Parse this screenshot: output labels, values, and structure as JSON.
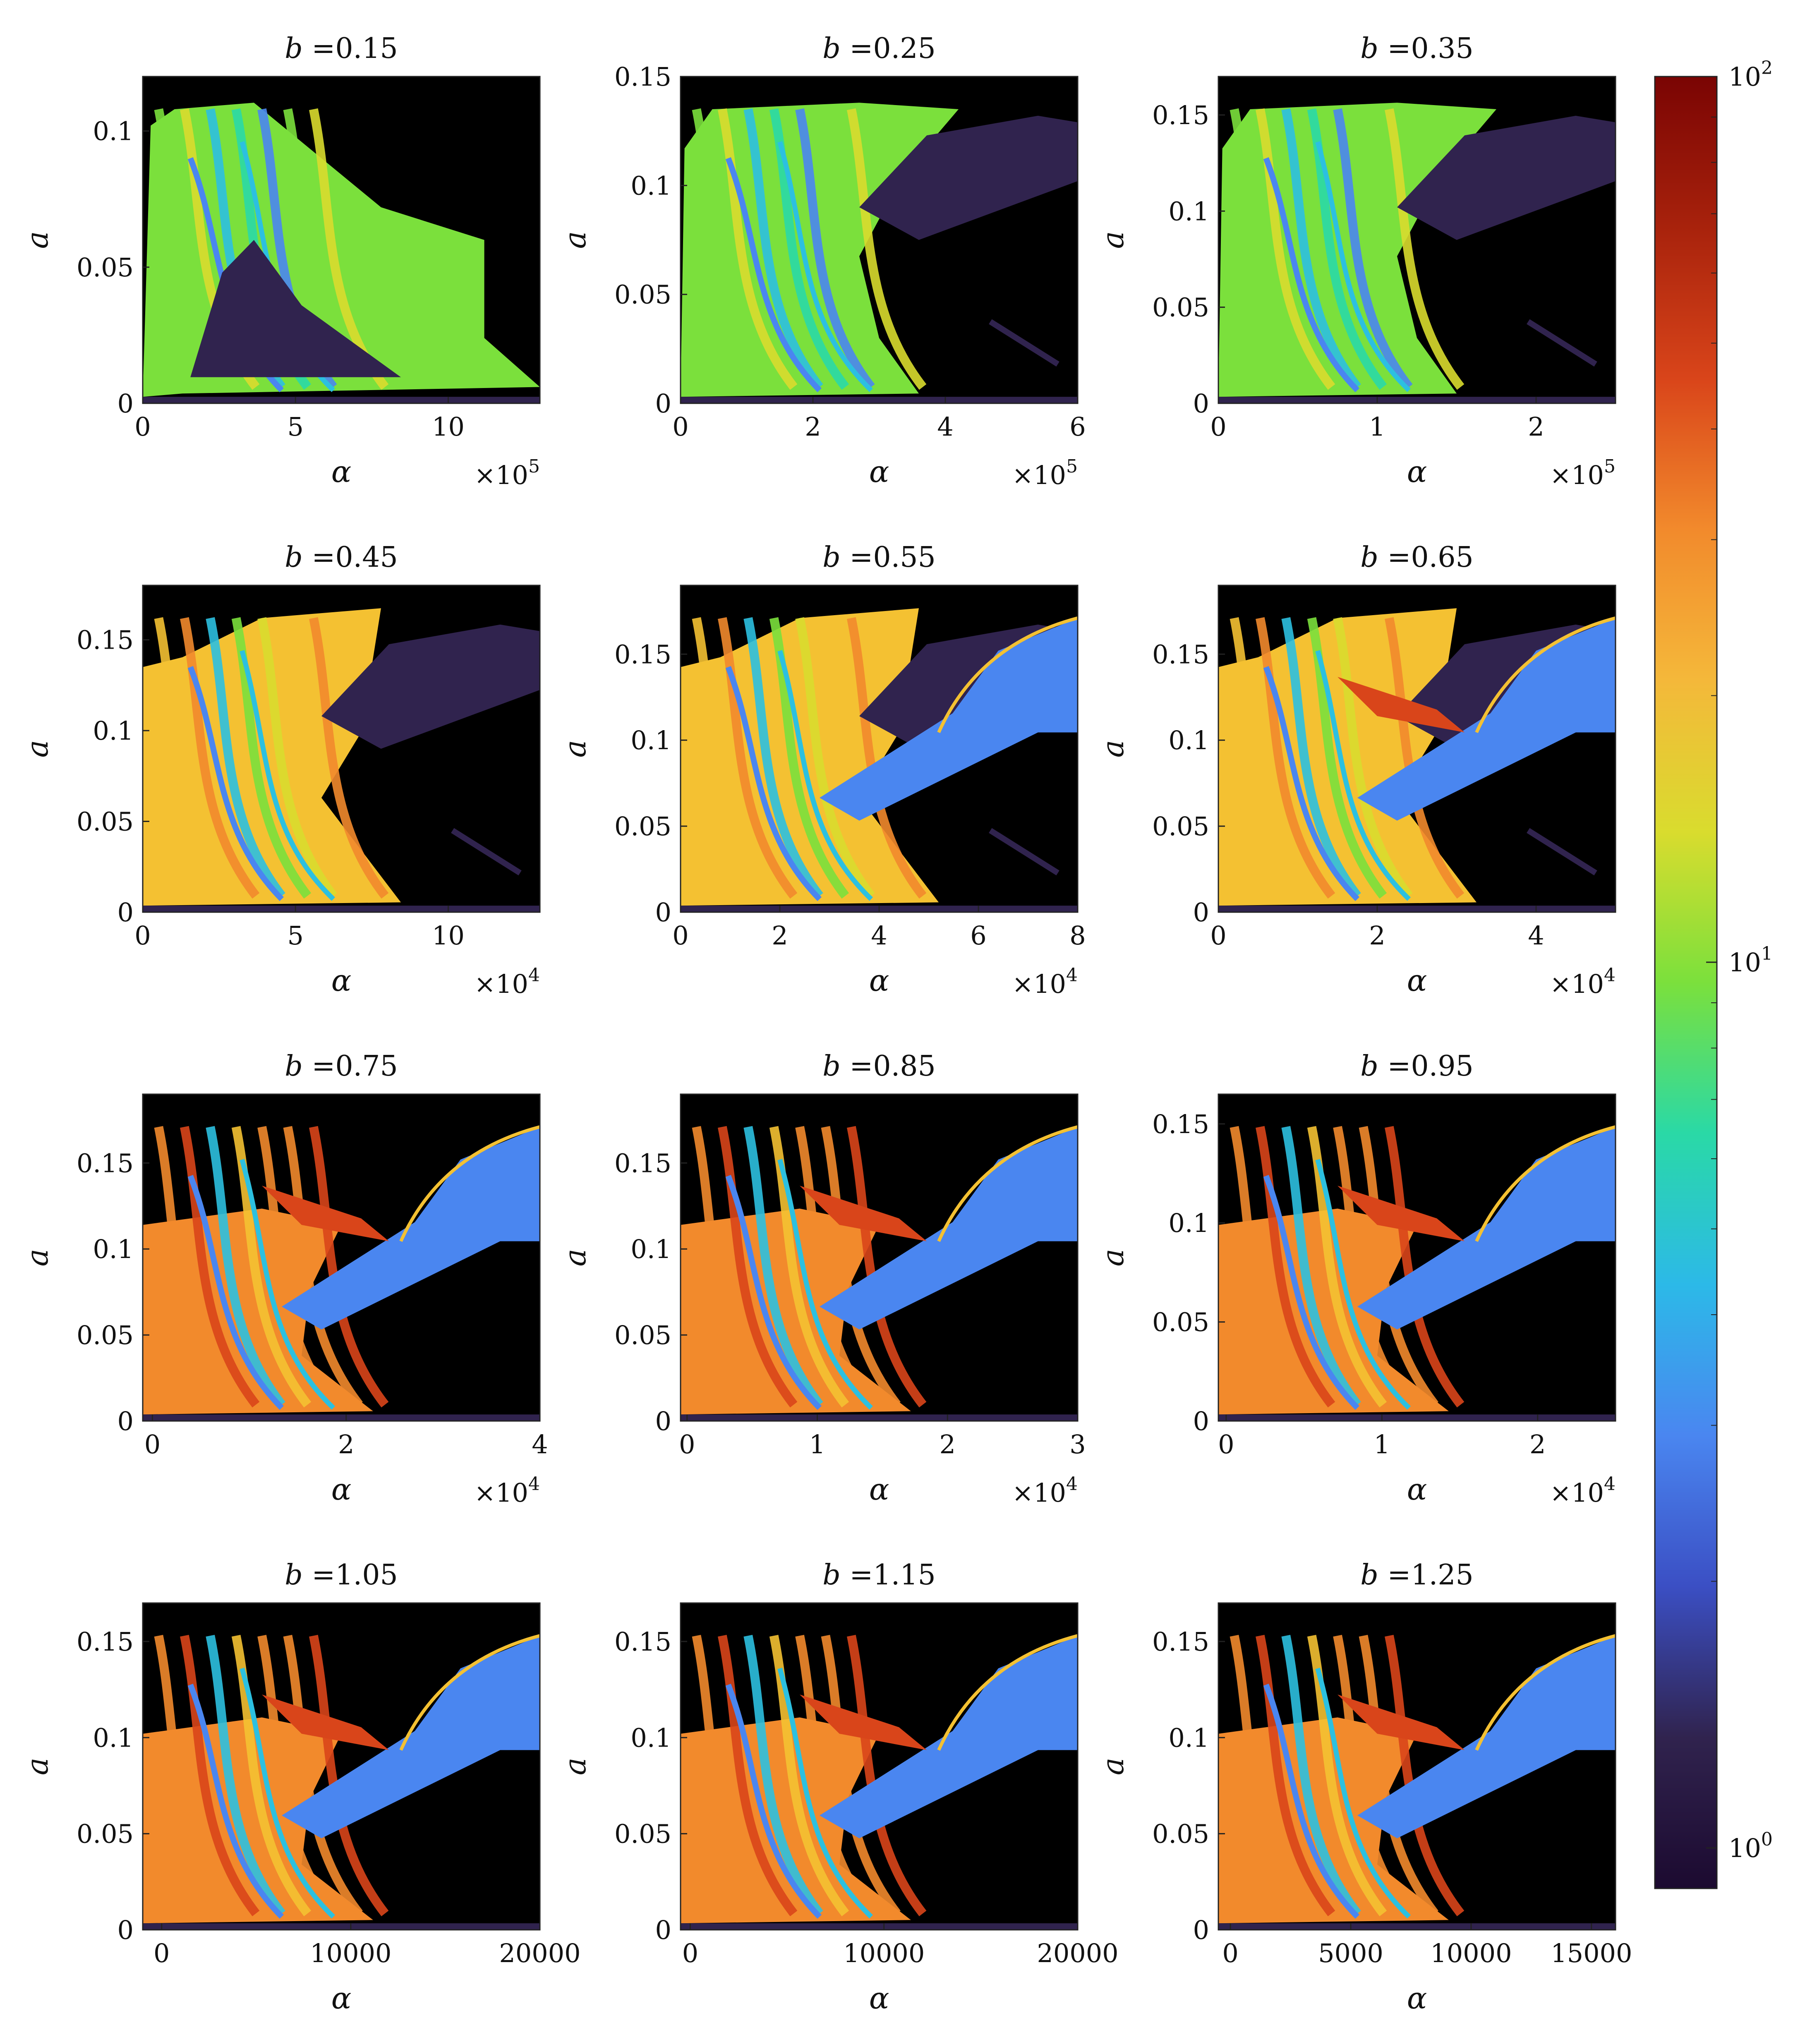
{
  "colors": {
    "background": "#000000",
    "dark_purple": "#30234e",
    "blue": "#4a86f0",
    "cyan": "#2cc0e0",
    "teal": "#2ad9a6",
    "green": "#7be03c",
    "yellow_green": "#d9dc2e",
    "yellow": "#f4c132",
    "orange": "#f28a2c",
    "red_orange": "#d9451a",
    "dark_red": "#8a0e06"
  },
  "colorbar": {
    "scale": "log",
    "range": [
      0.9,
      100
    ],
    "ticks": [
      {
        "value": 100,
        "base": "10",
        "exp": "2"
      },
      {
        "value": 10,
        "base": "10",
        "exp": "1"
      },
      {
        "value": 1,
        "base": "10",
        "exp": "0"
      }
    ],
    "colormap": [
      "#1c0a30",
      "#30234e",
      "#3b4fc4",
      "#4a86f0",
      "#2cb9e8",
      "#2ad9a6",
      "#7be03c",
      "#d9dc2e",
      "#f4b83a",
      "#f28a2c",
      "#d9451a",
      "#a8220c",
      "#7a0403"
    ]
  },
  "chart_data": [
    {
      "type": "heatmap",
      "title_var": "b",
      "title_eq": "=",
      "title_val": "0.15",
      "xlabel": "α",
      "ylabel": "a",
      "x_multiplier": "×10",
      "x_multiplier_exp": "5",
      "xlim": [
        0,
        13
      ],
      "ylim": [
        0,
        0.12
      ],
      "xticks": [
        0,
        5,
        10
      ],
      "xtick_labels": [
        "0",
        "5",
        "10"
      ],
      "yticks": [
        0,
        0.05,
        0.1
      ],
      "ytick_labels": [
        "0",
        "0.05",
        "0.1"
      ]
    },
    {
      "type": "heatmap",
      "title_var": "b",
      "title_eq": "=",
      "title_val": "0.25",
      "xlabel": "α",
      "ylabel": "a",
      "x_multiplier": "×10",
      "x_multiplier_exp": "5",
      "xlim": [
        0,
        6
      ],
      "ylim": [
        0,
        0.15
      ],
      "xticks": [
        0,
        2,
        4,
        6
      ],
      "xtick_labels": [
        "0",
        "2",
        "4",
        "6"
      ],
      "yticks": [
        0,
        0.05,
        0.1,
        0.15
      ],
      "ytick_labels": [
        "0",
        "0.05",
        "0.1",
        "0.15"
      ]
    },
    {
      "type": "heatmap",
      "title_var": "b",
      "title_eq": "=",
      "title_val": "0.35",
      "xlabel": "α",
      "ylabel": "a",
      "x_multiplier": "×10",
      "x_multiplier_exp": "5",
      "xlim": [
        0,
        2.5
      ],
      "ylim": [
        0,
        0.17
      ],
      "xticks": [
        0,
        1,
        2
      ],
      "xtick_labels": [
        "0",
        "1",
        "2"
      ],
      "yticks": [
        0,
        0.05,
        0.1,
        0.15
      ],
      "ytick_labels": [
        "0",
        "0.05",
        "0.1",
        "0.15"
      ]
    },
    {
      "type": "heatmap",
      "title_var": "b",
      "title_eq": "=",
      "title_val": "0.45",
      "xlabel": "α",
      "ylabel": "a",
      "x_multiplier": "×10",
      "x_multiplier_exp": "4",
      "xlim": [
        0,
        13
      ],
      "ylim": [
        0,
        0.18
      ],
      "xticks": [
        0,
        5,
        10
      ],
      "xtick_labels": [
        "0",
        "5",
        "10"
      ],
      "yticks": [
        0,
        0.05,
        0.1,
        0.15
      ],
      "ytick_labels": [
        "0",
        "0.05",
        "0.1",
        "0.15"
      ]
    },
    {
      "type": "heatmap",
      "title_var": "b",
      "title_eq": "=",
      "title_val": "0.55",
      "xlabel": "α",
      "ylabel": "a",
      "x_multiplier": "×10",
      "x_multiplier_exp": "4",
      "xlim": [
        0,
        8
      ],
      "ylim": [
        0,
        0.19
      ],
      "xticks": [
        0,
        2,
        4,
        6,
        8
      ],
      "xtick_labels": [
        "0",
        "2",
        "4",
        "6",
        "8"
      ],
      "yticks": [
        0,
        0.05,
        0.1,
        0.15
      ],
      "ytick_labels": [
        "0",
        "0.05",
        "0.1",
        "0.15"
      ]
    },
    {
      "type": "heatmap",
      "title_var": "b",
      "title_eq": "=",
      "title_val": "0.65",
      "xlabel": "α",
      "ylabel": "a",
      "x_multiplier": "×10",
      "x_multiplier_exp": "4",
      "xlim": [
        0,
        5
      ],
      "ylim": [
        0,
        0.19
      ],
      "xticks": [
        0,
        2,
        4
      ],
      "xtick_labels": [
        "0",
        "2",
        "4"
      ],
      "yticks": [
        0,
        0.05,
        0.1,
        0.15
      ],
      "ytick_labels": [
        "0",
        "0.05",
        "0.1",
        "0.15"
      ]
    },
    {
      "type": "heatmap",
      "title_var": "b",
      "title_eq": "=",
      "title_val": "0.75",
      "xlabel": "α",
      "ylabel": "a",
      "x_multiplier": "×10",
      "x_multiplier_exp": "4",
      "xlim": [
        -0.1,
        4
      ],
      "ylim": [
        0,
        0.19
      ],
      "xticks": [
        0,
        2,
        4
      ],
      "xtick_labels": [
        "0",
        "2",
        "4"
      ],
      "yticks": [
        0,
        0.05,
        0.1,
        0.15
      ],
      "ytick_labels": [
        "0",
        "0.05",
        "0.1",
        "0.15"
      ]
    },
    {
      "type": "heatmap",
      "title_var": "b",
      "title_eq": "=",
      "title_val": "0.85",
      "xlabel": "α",
      "ylabel": "a",
      "x_multiplier": "×10",
      "x_multiplier_exp": "4",
      "xlim": [
        -0.05,
        3
      ],
      "ylim": [
        0,
        0.19
      ],
      "xticks": [
        0,
        1,
        2,
        3
      ],
      "xtick_labels": [
        "0",
        "1",
        "2",
        "3"
      ],
      "yticks": [
        0,
        0.05,
        0.1,
        0.15
      ],
      "ytick_labels": [
        "0",
        "0.05",
        "0.1",
        "0.15"
      ]
    },
    {
      "type": "heatmap",
      "title_var": "b",
      "title_eq": "=",
      "title_val": "0.95",
      "xlabel": "α",
      "ylabel": "a",
      "x_multiplier": "×10",
      "x_multiplier_exp": "4",
      "xlim": [
        -0.05,
        2.5
      ],
      "ylim": [
        0,
        0.165
      ],
      "xticks": [
        0,
        1,
        2
      ],
      "xtick_labels": [
        "0",
        "1",
        "2"
      ],
      "yticks": [
        0,
        0.05,
        0.1,
        0.15
      ],
      "ytick_labels": [
        "0",
        "0.05",
        "0.1",
        "0.15"
      ]
    },
    {
      "type": "heatmap",
      "title_var": "b",
      "title_eq": "=",
      "title_val": "1.05",
      "xlabel": "α",
      "ylabel": "a",
      "x_multiplier": "",
      "x_multiplier_exp": "",
      "xlim": [
        -1000,
        20000
      ],
      "ylim": [
        0,
        0.17
      ],
      "xticks": [
        0,
        10000,
        20000
      ],
      "xtick_labels": [
        "0",
        "10000",
        "20000"
      ],
      "yticks": [
        0,
        0.05,
        0.1,
        0.15
      ],
      "ytick_labels": [
        "0",
        "0.05",
        "0.1",
        "0.15"
      ]
    },
    {
      "type": "heatmap",
      "title_var": "b",
      "title_eq": "=",
      "title_val": "1.15",
      "xlabel": "α",
      "ylabel": "a",
      "x_multiplier": "",
      "x_multiplier_exp": "",
      "xlim": [
        -500,
        20000
      ],
      "ylim": [
        0,
        0.17
      ],
      "xticks": [
        0,
        10000,
        20000
      ],
      "xtick_labels": [
        "0",
        "10000",
        "20000"
      ],
      "yticks": [
        0,
        0.05,
        0.1,
        0.15
      ],
      "ytick_labels": [
        "0",
        "0.05",
        "0.1",
        "0.15"
      ]
    },
    {
      "type": "heatmap",
      "title_var": "b",
      "title_eq": "=",
      "title_val": "1.25",
      "xlabel": "α",
      "ylabel": "a",
      "x_multiplier": "",
      "x_multiplier_exp": "",
      "xlim": [
        -500,
        16000
      ],
      "ylim": [
        0,
        0.17
      ],
      "xticks": [
        0,
        5000,
        10000,
        15000
      ],
      "xtick_labels": [
        "0",
        "5000",
        "10000",
        "15000"
      ],
      "yticks": [
        0,
        0.05,
        0.1,
        0.15
      ],
      "ytick_labels": [
        "0",
        "0.05",
        "0.1",
        "0.15"
      ]
    }
  ]
}
